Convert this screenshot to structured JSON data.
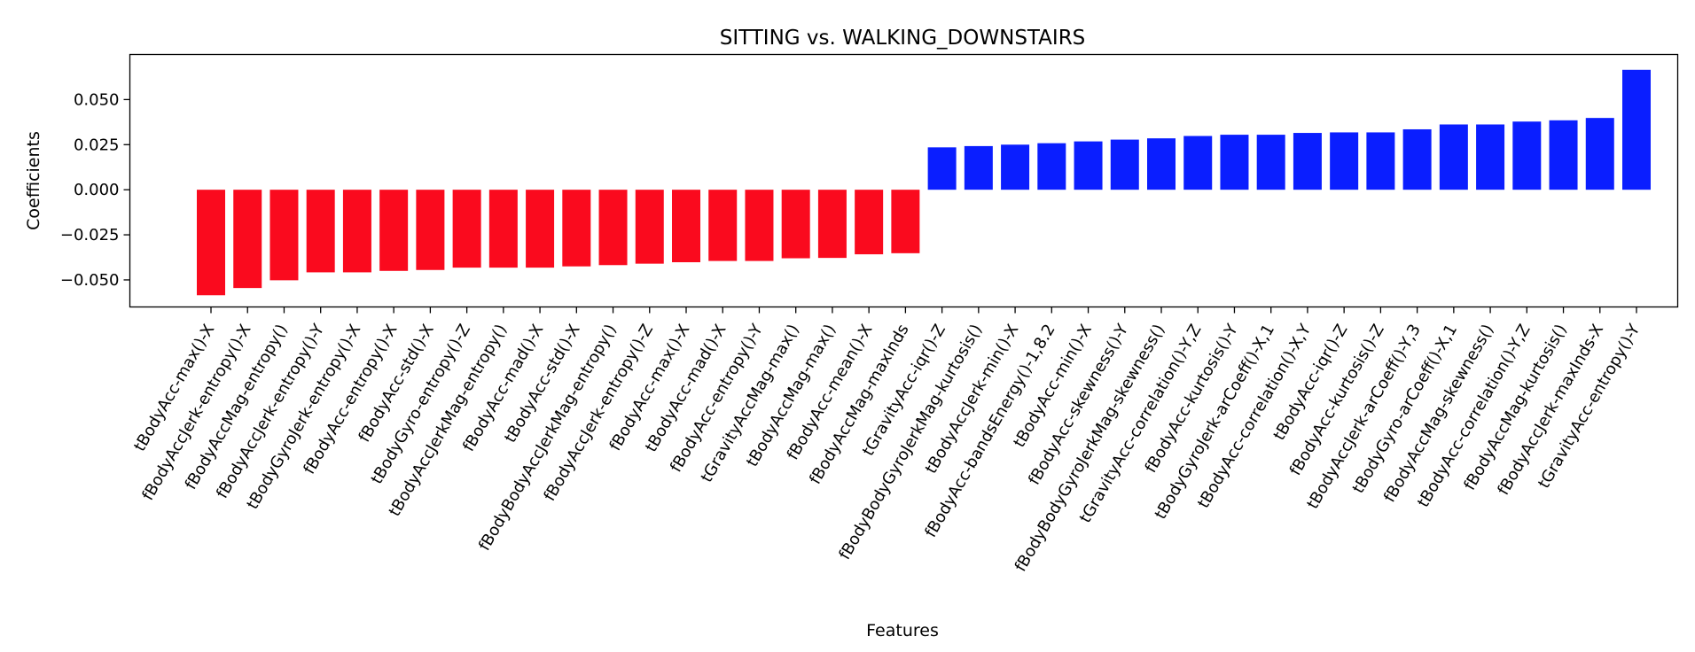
{
  "chart_data": {
    "type": "bar",
    "title": "SITTING vs. WALKING_DOWNSTAIRS",
    "xlabel": "Features",
    "ylabel": "Coefficients",
    "ylim": [
      -0.065,
      0.075
    ],
    "yticks": [
      0.05,
      0.025,
      0.0,
      -0.025,
      -0.05
    ],
    "ytick_labels": [
      "0.050",
      "0.025",
      "0.000",
      "−0.025",
      "−0.050"
    ],
    "grid": false,
    "categories": [
      "tBodyAcc-max()-X",
      "fBodyAccJerk-entropy()-X",
      "fBodyAccMag-entropy()",
      "fBodyAccJerk-entropy()-Y",
      "tBodyGyroJerk-entropy()-X",
      "fBodyAcc-entropy()-X",
      "fBodyAcc-std()-X",
      "tBodyGyro-entropy()-Z",
      "tBodyAccJerkMag-entropy()",
      "fBodyAcc-mad()-X",
      "tBodyAcc-std()-X",
      "fBodyBodyAccJerkMag-entropy()",
      "fBodyAccJerk-entropy()-Z",
      "fBodyAcc-max()-X",
      "tBodyAcc-mad()-X",
      "fBodyAcc-entropy()-Y",
      "tGravityAccMag-max()",
      "tBodyAccMag-max()",
      "fBodyAcc-mean()-X",
      "fBodyAccMag-maxInds",
      "tGravityAcc-iqr()-Z",
      "fBodyBodyGyroJerkMag-kurtosis()",
      "tBodyAccJerk-min()-X",
      "fBodyAcc-bandsEnergy()-1,8.2",
      "tBodyAcc-min()-X",
      "fBodyAcc-skewness()-Y",
      "fBodyBodyGyroJerkMag-skewness()",
      "tGravityAcc-correlation()-Y,Z",
      "fBodyAcc-kurtosis()-Y",
      "tBodyGyroJerk-arCoeff()-X,1",
      "tBodyAcc-correlation()-X,Y",
      "tBodyAcc-iqr()-Z",
      "fBodyAcc-kurtosis()-Z",
      "tBodyAccJerk-arCoeff()-Y,3",
      "tBodyGyro-arCoeff()-X,1",
      "fBodyAccMag-skewness()",
      "tBodyAcc-correlation()-Y,Z",
      "fBodyAccMag-kurtosis()",
      "fBodyAccJerk-maxInds-X",
      "tGravityAcc-entropy()-Y"
    ],
    "values": [
      -0.0585,
      -0.0545,
      -0.0502,
      -0.0458,
      -0.0458,
      -0.045,
      -0.0445,
      -0.0432,
      -0.0432,
      -0.0432,
      -0.0425,
      -0.0418,
      -0.041,
      -0.0402,
      -0.0395,
      -0.0395,
      -0.038,
      -0.0378,
      -0.0358,
      -0.0352,
      0.0235,
      0.0242,
      0.025,
      0.0258,
      0.0268,
      0.0278,
      0.0285,
      0.0298,
      0.0305,
      0.0305,
      0.0315,
      0.0318,
      0.0318,
      0.0335,
      0.0362,
      0.0362,
      0.0378,
      0.0385,
      0.0398,
      0.0665
    ],
    "colors": {
      "negative": "#fa0a1e",
      "positive": "#0a1eff"
    }
  }
}
